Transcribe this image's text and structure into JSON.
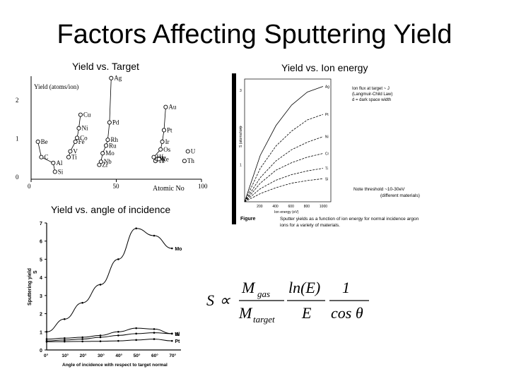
{
  "title": "Factors Affecting Sputtering Yield",
  "captions": {
    "target": "Yield vs. Target",
    "energy": "Yield vs. Ion energy",
    "angle": "Yield vs. angle of incidence"
  },
  "chart_data": [
    {
      "type": "scatter",
      "title": "Yield vs. Target",
      "ylabel": "Yield (atoms/ion)",
      "xlabel": "Atomic No",
      "ylim": [
        0,
        2.6
      ],
      "xlim": [
        0,
        100
      ],
      "x_ticks": [
        "0",
        "50",
        "100"
      ],
      "y_ticks": [
        "0",
        "1",
        "2"
      ],
      "points": [
        {
          "label": "Be",
          "x": 4,
          "y": 0.9
        },
        {
          "label": "C",
          "x": 6,
          "y": 0.5
        },
        {
          "label": "Al",
          "x": 13,
          "y": 0.35
        },
        {
          "label": "Si",
          "x": 14,
          "y": 0.12
        },
        {
          "label": "Ti",
          "x": 22,
          "y": 0.5
        },
        {
          "label": "V",
          "x": 23,
          "y": 0.65
        },
        {
          "label": "Fe",
          "x": 26,
          "y": 0.9
        },
        {
          "label": "Co",
          "x": 27,
          "y": 1.0
        },
        {
          "label": "Ni",
          "x": 28,
          "y": 1.25
        },
        {
          "label": "Cu",
          "x": 29,
          "y": 1.6
        },
        {
          "label": "Zr",
          "x": 40,
          "y": 0.3
        },
        {
          "label": "Nb",
          "x": 41,
          "y": 0.38
        },
        {
          "label": "Mo",
          "x": 42,
          "y": 0.6
        },
        {
          "label": "Ru",
          "x": 44,
          "y": 0.8
        },
        {
          "label": "Rh",
          "x": 45,
          "y": 0.95
        },
        {
          "label": "Pd",
          "x": 46,
          "y": 1.4
        },
        {
          "label": "Ag",
          "x": 47,
          "y": 2.55
        },
        {
          "label": "Hf",
          "x": 72,
          "y": 0.5
        },
        {
          "label": "Ta",
          "x": 73,
          "y": 0.4
        },
        {
          "label": "W",
          "x": 74,
          "y": 0.45
        },
        {
          "label": "Re",
          "x": 75,
          "y": 0.45
        },
        {
          "label": "Os",
          "x": 76,
          "y": 0.7
        },
        {
          "label": "Ir",
          "x": 77,
          "y": 0.9
        },
        {
          "label": "Pt",
          "x": 78,
          "y": 1.2
        },
        {
          "label": "Au",
          "x": 79,
          "y": 1.8
        },
        {
          "label": "Th",
          "x": 90,
          "y": 0.4
        },
        {
          "label": "U",
          "x": 92,
          "y": 0.65
        }
      ]
    },
    {
      "type": "line",
      "title": "Yield vs. Ion energy",
      "xlabel": "Ion energy (eV)",
      "ylabel": "S (atoms/ion)",
      "x": [
        0,
        200,
        400,
        600,
        800,
        1000
      ],
      "x_ticks": [
        "200",
        "400",
        "600",
        "800",
        "1000"
      ],
      "y_ticks": [
        "1",
        "2",
        "3"
      ],
      "ylim": [
        0,
        3.3
      ],
      "series": [
        {
          "name": "Ag",
          "values": [
            0,
            1.25,
            2.05,
            2.6,
            2.95,
            3.1
          ]
        },
        {
          "name": "Pt",
          "values": [
            0,
            0.9,
            1.5,
            1.9,
            2.2,
            2.35
          ]
        },
        {
          "name": "Ni",
          "values": [
            0,
            0.65,
            1.1,
            1.4,
            1.6,
            1.75
          ]
        },
        {
          "name": "Cr",
          "values": [
            0,
            0.5,
            0.85,
            1.05,
            1.2,
            1.3
          ]
        },
        {
          "name": "Ti",
          "values": [
            0,
            0.35,
            0.58,
            0.73,
            0.83,
            0.9
          ]
        },
        {
          "name": "Si",
          "values": [
            0,
            0.22,
            0.38,
            0.5,
            0.57,
            0.62
          ]
        }
      ],
      "notes": [
        "Ion flux at target ~ J",
        "(Langmuir-Child Law)",
        "d = dark space width",
        "Note threshold ~10-30eV",
        "(different materials)"
      ],
      "figure_label": "Figure",
      "figure_caption_1": "Sputter yields as a function of ion energy for normal incidence argon",
      "figure_caption_2": "ions for a variety of materials."
    },
    {
      "type": "line",
      "title": "Yield vs. angle of incidence",
      "xlabel": "Angle of incidence with respect to target normal",
      "ylabel": "Sputtering yield",
      "ylabel_unit": "S",
      "x": [
        0,
        10,
        20,
        30,
        40,
        50,
        60,
        70
      ],
      "x_ticks": [
        "0°",
        "10°",
        "20°",
        "30°",
        "40°",
        "50°",
        "60°",
        "70°"
      ],
      "y_ticks": [
        "0",
        "1",
        "2",
        "3",
        "4",
        "5",
        "6",
        "7"
      ],
      "ylim": [
        0,
        7
      ],
      "series": [
        {
          "name": "Mo",
          "values": [
            1.0,
            1.7,
            2.6,
            3.6,
            5.0,
            6.7,
            6.3,
            5.6
          ]
        },
        {
          "name": "Ni",
          "values": [
            0.6,
            0.65,
            0.7,
            0.8,
            1.0,
            1.2,
            1.15,
            0.9
          ]
        },
        {
          "name": "W",
          "values": [
            0.5,
            0.55,
            0.6,
            0.7,
            0.8,
            0.9,
            0.95,
            0.9
          ]
        },
        {
          "name": "Pt",
          "values": [
            0.45,
            0.46,
            0.47,
            0.48,
            0.5,
            0.55,
            0.6,
            0.5
          ]
        }
      ]
    }
  ],
  "formula": {
    "lhs": "S",
    "prop": "∝",
    "m_gas": "M",
    "gas_sub": "gas",
    "m_target": "M",
    "target_sub": "target",
    "ln_e": "ln(E)",
    "e": "E",
    "one": "1",
    "cos": "cos θ"
  }
}
